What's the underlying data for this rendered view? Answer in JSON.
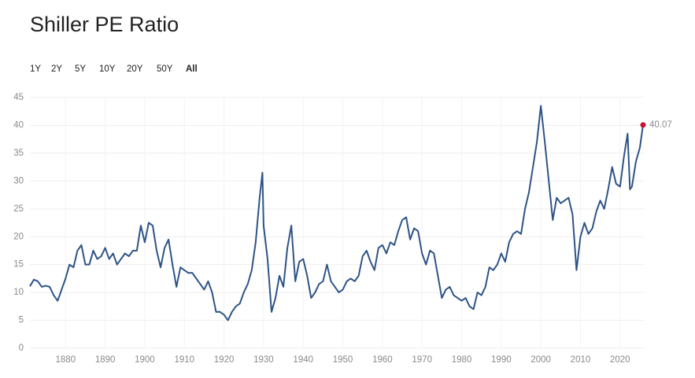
{
  "chart_data": {
    "type": "line",
    "title": "Shiller PE Ratio",
    "range_options": [
      "1Y",
      "2Y",
      "5Y",
      "10Y",
      "20Y",
      "50Y",
      "All"
    ],
    "selected_range_index": 6,
    "xlim": [
      1871,
      2026
    ],
    "ylim": [
      0,
      45
    ],
    "xticks": [
      1880,
      1890,
      1900,
      1910,
      1920,
      1930,
      1940,
      1950,
      1960,
      1970,
      1980,
      1990,
      2000,
      2010,
      2020
    ],
    "yticks": [
      0,
      5,
      10,
      15,
      20,
      25,
      30,
      35,
      40,
      45
    ],
    "grid": true,
    "last_point_color": "#c8102e",
    "series": [
      {
        "name": "Shiller PE Ratio",
        "color": "#2e5486",
        "x": [
          1871,
          1872,
          1873,
          1874,
          1875,
          1876,
          1877,
          1878,
          1879,
          1880,
          1881,
          1882,
          1883,
          1884,
          1885,
          1886,
          1887,
          1888,
          1889,
          1890,
          1891,
          1892,
          1893,
          1894,
          1895,
          1896,
          1897,
          1898,
          1899,
          1900,
          1901,
          1902,
          1903,
          1904,
          1905,
          1906,
          1907,
          1908,
          1909,
          1910,
          1911,
          1912,
          1913,
          1914,
          1915,
          1916,
          1917,
          1918,
          1919,
          1920,
          1921,
          1922,
          1923,
          1924,
          1925,
          1926,
          1927,
          1928,
          1929,
          1929.7,
          1930,
          1931,
          1932,
          1933,
          1934,
          1935,
          1936,
          1937,
          1938,
          1939,
          1940,
          1941,
          1942,
          1943,
          1944,
          1945,
          1946,
          1947,
          1948,
          1949,
          1950,
          1951,
          1952,
          1953,
          1954,
          1955,
          1956,
          1957,
          1958,
          1959,
          1960,
          1961,
          1962,
          1963,
          1964,
          1965,
          1966,
          1967,
          1968,
          1969,
          1970,
          1971,
          1972,
          1973,
          1974,
          1975,
          1976,
          1977,
          1978,
          1979,
          1980,
          1981,
          1982,
          1983,
          1984,
          1985,
          1986,
          1987,
          1988,
          1989,
          1990,
          1991,
          1992,
          1993,
          1994,
          1995,
          1996,
          1997,
          1998,
          1999,
          2000,
          2001,
          2002,
          2003,
          2004,
          2005,
          2006,
          2007,
          2008,
          2009,
          2010,
          2011,
          2012,
          2013,
          2014,
          2015,
          2016,
          2017,
          2018,
          2019,
          2020,
          2021,
          2021.9,
          2022.5,
          2023,
          2024,
          2025,
          2025.8
        ],
        "values": [
          11.1,
          12.3,
          12.0,
          11.0,
          11.2,
          11.0,
          9.5,
          8.5,
          10.5,
          12.5,
          15.0,
          14.5,
          17.5,
          18.5,
          15.0,
          15.0,
          17.5,
          16.0,
          16.5,
          18.0,
          16.0,
          17.0,
          15.0,
          16.0,
          17.0,
          16.5,
          17.5,
          17.5,
          22.0,
          19.0,
          22.5,
          22.0,
          17.5,
          14.5,
          18.0,
          19.5,
          15.0,
          11.0,
          14.5,
          14.0,
          13.5,
          13.5,
          12.5,
          11.5,
          10.5,
          12.0,
          10.0,
          6.5,
          6.5,
          6.0,
          5.0,
          6.5,
          7.5,
          8.0,
          10.0,
          11.5,
          14.0,
          19.0,
          27.0,
          31.5,
          22.0,
          16.0,
          6.5,
          9.0,
          13.0,
          11.0,
          18.0,
          22.0,
          12.0,
          15.5,
          16.0,
          13.0,
          9.0,
          10.0,
          11.5,
          12.0,
          15.0,
          12.0,
          11.0,
          10.0,
          10.5,
          12.0,
          12.5,
          12.0,
          13.0,
          16.5,
          17.5,
          15.5,
          14.0,
          18.0,
          18.5,
          17.0,
          19.0,
          18.5,
          21.0,
          23.0,
          23.5,
          19.5,
          21.5,
          21.0,
          17.0,
          15.0,
          17.5,
          17.0,
          13.0,
          9.0,
          10.5,
          11.0,
          9.5,
          9.0,
          8.5,
          9.0,
          7.5,
          7.0,
          10.0,
          9.5,
          11.0,
          14.5,
          14.0,
          15.0,
          17.0,
          15.5,
          19.0,
          20.5,
          21.0,
          20.5,
          25.0,
          28.0,
          32.5,
          37.0,
          43.5,
          37.0,
          30.0,
          23.0,
          27.0,
          26.0,
          26.5,
          27.0,
          24.0,
          14.0,
          20.0,
          22.5,
          20.5,
          21.5,
          24.5,
          26.5,
          25.0,
          28.5,
          32.5,
          29.5,
          29.0,
          34.5,
          38.5,
          28.5,
          29.0,
          33.5,
          36.0,
          40.07
        ]
      }
    ]
  }
}
